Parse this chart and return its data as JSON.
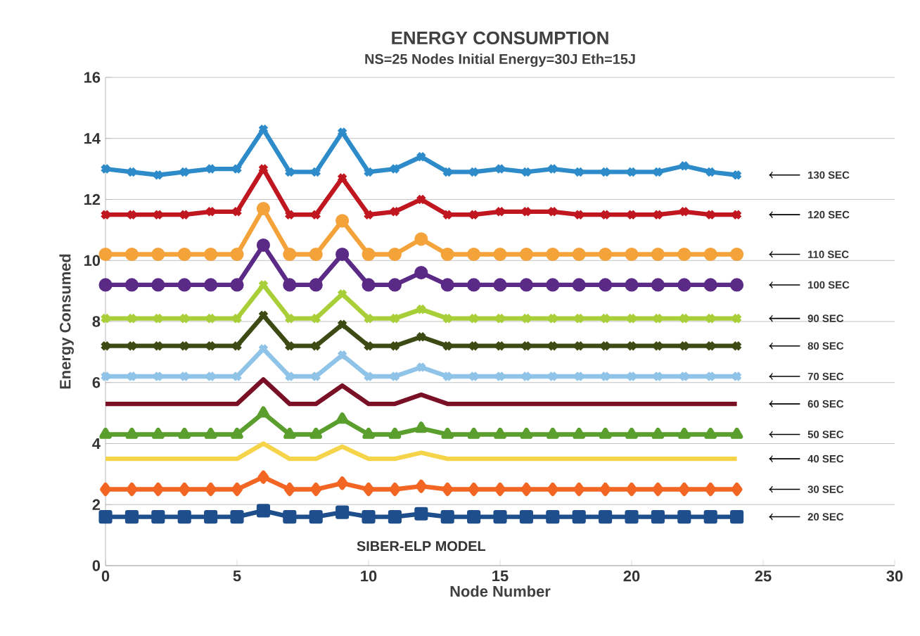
{
  "chart_data": {
    "type": "line",
    "title": "ENERGY CONSUMPTION",
    "subtitle": "NS=25 Nodes      Initial Energy=30J       Eth=15J",
    "xlabel": "Node Number",
    "ylabel": "Energy Consumed",
    "annotations": [
      "SIBER-ELP MODEL"
    ],
    "x": [
      0,
      1,
      2,
      3,
      4,
      5,
      6,
      7,
      8,
      9,
      10,
      11,
      12,
      13,
      14,
      15,
      16,
      17,
      18,
      19,
      20,
      21,
      22,
      23,
      24
    ],
    "xlim": [
      0,
      30
    ],
    "xticks": [
      0,
      5,
      10,
      15,
      20,
      25,
      30
    ],
    "ylim": [
      0,
      16
    ],
    "yticks": [
      0,
      2,
      4,
      6,
      8,
      10,
      12,
      14,
      16
    ],
    "grid": "y",
    "legend": false,
    "line_style": "solid",
    "series": [
      {
        "name": "130 SEC",
        "color": "#2e8bc9",
        "marker": "cross",
        "values": [
          13.0,
          12.9,
          12.8,
          12.9,
          13.0,
          13.0,
          14.3,
          12.9,
          12.9,
          14.2,
          12.9,
          13.0,
          13.4,
          12.9,
          12.9,
          13.0,
          12.9,
          13.0,
          12.9,
          12.9,
          12.9,
          12.9,
          13.1,
          12.9,
          12.8
        ]
      },
      {
        "name": "120 SEC",
        "color": "#c0161f",
        "marker": "cross",
        "values": [
          11.5,
          11.5,
          11.5,
          11.5,
          11.6,
          11.6,
          13.0,
          11.5,
          11.5,
          12.7,
          11.5,
          11.6,
          12.0,
          11.5,
          11.5,
          11.6,
          11.6,
          11.6,
          11.5,
          11.5,
          11.5,
          11.5,
          11.6,
          11.5,
          11.5
        ]
      },
      {
        "name": "110 SEC",
        "color": "#f4a23a",
        "marker": "circle",
        "values": [
          10.2,
          10.2,
          10.2,
          10.2,
          10.2,
          10.2,
          11.7,
          10.2,
          10.2,
          11.3,
          10.2,
          10.2,
          10.7,
          10.2,
          10.2,
          10.2,
          10.2,
          10.2,
          10.2,
          10.2,
          10.2,
          10.2,
          10.2,
          10.2,
          10.2
        ]
      },
      {
        "name": "100 SEC",
        "color": "#5b2a86",
        "marker": "circle",
        "values": [
          9.2,
          9.2,
          9.2,
          9.2,
          9.2,
          9.2,
          10.5,
          9.2,
          9.2,
          10.2,
          9.2,
          9.2,
          9.6,
          9.2,
          9.2,
          9.2,
          9.2,
          9.2,
          9.2,
          9.2,
          9.2,
          9.2,
          9.2,
          9.2,
          9.2
        ]
      },
      {
        "name": "90 SEC",
        "color": "#a8cf38",
        "marker": "cross",
        "values": [
          8.1,
          8.1,
          8.1,
          8.1,
          8.1,
          8.1,
          9.2,
          8.1,
          8.1,
          8.9,
          8.1,
          8.1,
          8.4,
          8.1,
          8.1,
          8.1,
          8.1,
          8.1,
          8.1,
          8.1,
          8.1,
          8.1,
          8.1,
          8.1,
          8.1
        ]
      },
      {
        "name": "80 SEC",
        "color": "#3d4a14",
        "marker": "cross",
        "values": [
          7.2,
          7.2,
          7.2,
          7.2,
          7.2,
          7.2,
          8.2,
          7.2,
          7.2,
          7.9,
          7.2,
          7.2,
          7.5,
          7.2,
          7.2,
          7.2,
          7.2,
          7.2,
          7.2,
          7.2,
          7.2,
          7.2,
          7.2,
          7.2,
          7.2
        ]
      },
      {
        "name": "70 SEC",
        "color": "#8fc3e8",
        "marker": "cross",
        "values": [
          6.2,
          6.2,
          6.2,
          6.2,
          6.2,
          6.2,
          7.1,
          6.2,
          6.2,
          6.9,
          6.2,
          6.2,
          6.5,
          6.2,
          6.2,
          6.2,
          6.2,
          6.2,
          6.2,
          6.2,
          6.2,
          6.2,
          6.2,
          6.2,
          6.2
        ]
      },
      {
        "name": "60 SEC",
        "color": "#7a1025",
        "marker": "none",
        "values": [
          5.3,
          5.3,
          5.3,
          5.3,
          5.3,
          5.3,
          6.1,
          5.3,
          5.3,
          5.9,
          5.3,
          5.3,
          5.6,
          5.3,
          5.3,
          5.3,
          5.3,
          5.3,
          5.3,
          5.3,
          5.3,
          5.3,
          5.3,
          5.3,
          5.3
        ]
      },
      {
        "name": "50 SEC",
        "color": "#5a9e2e",
        "marker": "triangle",
        "values": [
          4.3,
          4.3,
          4.3,
          4.3,
          4.3,
          4.3,
          5.0,
          4.3,
          4.3,
          4.8,
          4.3,
          4.3,
          4.5,
          4.3,
          4.3,
          4.3,
          4.3,
          4.3,
          4.3,
          4.3,
          4.3,
          4.3,
          4.3,
          4.3,
          4.3
        ]
      },
      {
        "name": "40 SEC",
        "color": "#f6d44a",
        "marker": "none",
        "values": [
          3.5,
          3.5,
          3.5,
          3.5,
          3.5,
          3.5,
          4.0,
          3.5,
          3.5,
          3.9,
          3.5,
          3.5,
          3.7,
          3.5,
          3.5,
          3.5,
          3.5,
          3.5,
          3.5,
          3.5,
          3.5,
          3.5,
          3.5,
          3.5,
          3.5
        ]
      },
      {
        "name": "30 SEC",
        "color": "#f26522",
        "marker": "diamond",
        "values": [
          2.5,
          2.5,
          2.5,
          2.5,
          2.5,
          2.5,
          2.9,
          2.5,
          2.5,
          2.7,
          2.5,
          2.5,
          2.6,
          2.5,
          2.5,
          2.5,
          2.5,
          2.5,
          2.5,
          2.5,
          2.5,
          2.5,
          2.5,
          2.5,
          2.5
        ]
      },
      {
        "name": "20 SEC",
        "color": "#1f4e8c",
        "marker": "square",
        "values": [
          1.6,
          1.6,
          1.6,
          1.6,
          1.6,
          1.6,
          1.8,
          1.6,
          1.6,
          1.75,
          1.6,
          1.6,
          1.7,
          1.6,
          1.6,
          1.6,
          1.6,
          1.6,
          1.6,
          1.6,
          1.6,
          1.6,
          1.6,
          1.6,
          1.6
        ]
      }
    ]
  }
}
